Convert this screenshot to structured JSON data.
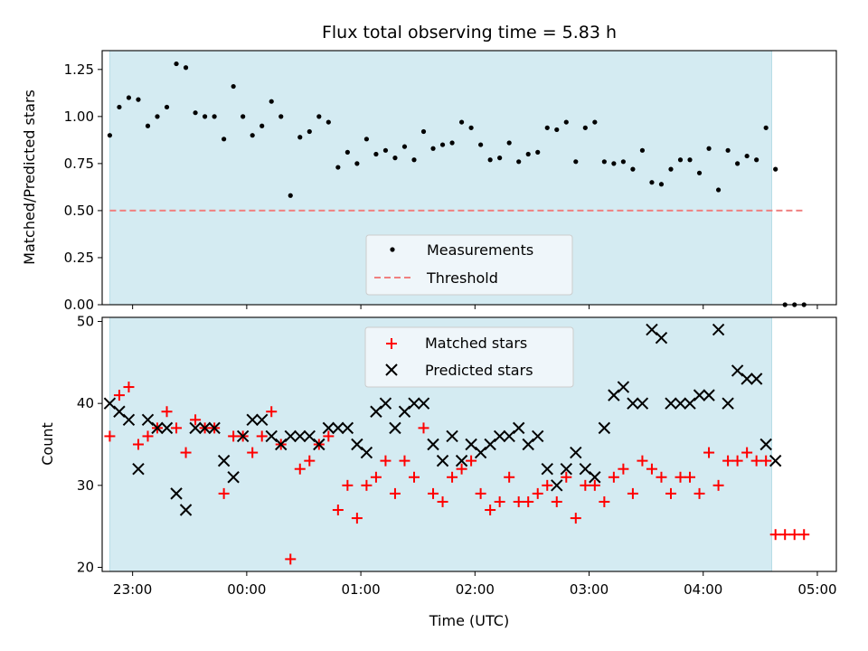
{
  "chart_data": [
    {
      "type": "scatter",
      "title": "Flux total observing time = 5.83 h",
      "xlabel": "",
      "ylabel": "Matched/Predicted stars",
      "xlim": [
        "22:44",
        "05:10"
      ],
      "ylim": [
        0,
        1.35
      ],
      "yticks": [
        "0.00",
        "0.25",
        "0.50",
        "0.75",
        "1.00",
        "1.25"
      ],
      "observing_window": [
        "22:48",
        "04:36"
      ],
      "colors": {
        "window": "#d4ebf2",
        "measurements": "#000000",
        "threshold": "#f08080"
      },
      "legend": {
        "placement": "lower-center",
        "entries": [
          "Measurements",
          "Threshold"
        ]
      },
      "threshold": {
        "name": "Threshold",
        "y": 0.5,
        "x": [
          "22:48",
          "04:54"
        ]
      },
      "series": [
        {
          "name": "Measurements",
          "x": [
            "22:48",
            "22:53",
            "22:58",
            "23:03",
            "23:08",
            "23:13",
            "23:18",
            "23:23",
            "23:28",
            "23:33",
            "23:38",
            "23:43",
            "23:48",
            "23:53",
            "23:58",
            "00:03",
            "00:08",
            "00:13",
            "00:18",
            "00:23",
            "00:28",
            "00:33",
            "00:38",
            "00:43",
            "00:48",
            "00:53",
            "00:58",
            "01:03",
            "01:08",
            "01:13",
            "01:18",
            "01:23",
            "01:28",
            "01:33",
            "01:38",
            "01:43",
            "01:48",
            "01:53",
            "01:58",
            "02:03",
            "02:08",
            "02:13",
            "02:18",
            "02:23",
            "02:28",
            "02:33",
            "02:38",
            "02:43",
            "02:48",
            "02:53",
            "02:58",
            "03:03",
            "03:08",
            "03:13",
            "03:18",
            "03:23",
            "03:28",
            "03:33",
            "03:38",
            "03:43",
            "03:48",
            "03:53",
            "03:58",
            "04:03",
            "04:08",
            "04:13",
            "04:18",
            "04:23",
            "04:28",
            "04:33",
            "04:38",
            "04:43",
            "04:48",
            "04:53"
          ],
          "y": [
            0.9,
            1.05,
            1.1,
            1.09,
            0.95,
            1.0,
            1.05,
            1.28,
            1.26,
            1.02,
            1.0,
            1.0,
            0.88,
            1.16,
            1.0,
            0.9,
            0.95,
            1.08,
            1.0,
            0.58,
            0.89,
            0.92,
            1.0,
            0.97,
            0.73,
            0.81,
            0.75,
            0.88,
            0.8,
            0.82,
            0.78,
            0.84,
            0.77,
            0.92,
            0.83,
            0.85,
            0.86,
            0.97,
            0.94,
            0.85,
            0.77,
            0.78,
            0.86,
            0.76,
            0.8,
            0.81,
            0.94,
            0.93,
            0.97,
            0.76,
            0.94,
            0.97,
            0.76,
            0.75,
            0.76,
            0.72,
            0.82,
            0.65,
            0.64,
            0.72,
            0.77,
            0.77,
            0.7,
            0.83,
            0.61,
            0.82,
            0.75,
            0.79,
            0.77,
            0.94,
            0.72,
            0.0,
            0.0,
            0.0
          ]
        }
      ]
    },
    {
      "type": "scatter",
      "title": "",
      "xlabel": "Time (UTC)",
      "ylabel": "Count",
      "xlim": [
        "22:44",
        "05:10"
      ],
      "ylim": [
        19.5,
        50.5
      ],
      "xticks": [
        "23:00",
        "00:00",
        "01:00",
        "02:00",
        "03:00",
        "04:00",
        "05:00"
      ],
      "yticks": [
        "20",
        "30",
        "40",
        "50"
      ],
      "observing_window": [
        "22:48",
        "04:36"
      ],
      "colors": {
        "window": "#d4ebf2",
        "matched": "#ff0000",
        "predicted": "#000000"
      },
      "legend": {
        "placement": "upper-center",
        "entries": [
          "Matched stars",
          "Predicted stars"
        ]
      },
      "series": [
        {
          "name": "Matched stars",
          "marker": "plus",
          "x": [
            "22:48",
            "22:53",
            "22:58",
            "23:03",
            "23:08",
            "23:13",
            "23:18",
            "23:23",
            "23:28",
            "23:33",
            "23:38",
            "23:43",
            "23:48",
            "23:53",
            "23:58",
            "00:03",
            "00:08",
            "00:13",
            "00:18",
            "00:23",
            "00:28",
            "00:33",
            "00:38",
            "00:43",
            "00:48",
            "00:53",
            "00:58",
            "01:03",
            "01:08",
            "01:13",
            "01:18",
            "01:23",
            "01:28",
            "01:33",
            "01:38",
            "01:43",
            "01:48",
            "01:53",
            "01:58",
            "02:03",
            "02:08",
            "02:13",
            "02:18",
            "02:23",
            "02:28",
            "02:33",
            "02:38",
            "02:43",
            "02:48",
            "02:53",
            "02:58",
            "03:03",
            "03:08",
            "03:13",
            "03:18",
            "03:23",
            "03:28",
            "03:33",
            "03:38",
            "03:43",
            "03:48",
            "03:53",
            "03:58",
            "04:03",
            "04:08",
            "04:13",
            "04:18",
            "04:23",
            "04:28",
            "04:33",
            "04:38",
            "04:43",
            "04:48",
            "04:53"
          ],
          "y": [
            36,
            41,
            42,
            35,
            36,
            37,
            39,
            37,
            34,
            38,
            37,
            37,
            29,
            36,
            36,
            34,
            36,
            39,
            35,
            21,
            32,
            33,
            35,
            36,
            27,
            30,
            26,
            30,
            31,
            33,
            29,
            33,
            31,
            37,
            29,
            28,
            31,
            32,
            33,
            29,
            27,
            28,
            31,
            28,
            28,
            29,
            30,
            28,
            31,
            26,
            30,
            30,
            28,
            31,
            32,
            29,
            33,
            32,
            31,
            29,
            31,
            31,
            29,
            34,
            30,
            33,
            33,
            34,
            33,
            33,
            24,
            24,
            24,
            24
          ]
        },
        {
          "name": "Predicted stars",
          "marker": "x",
          "x": [
            "22:48",
            "22:53",
            "22:58",
            "23:03",
            "23:08",
            "23:13",
            "23:18",
            "23:23",
            "23:28",
            "23:33",
            "23:38",
            "23:43",
            "23:48",
            "23:53",
            "23:58",
            "00:03",
            "00:08",
            "00:13",
            "00:18",
            "00:23",
            "00:28",
            "00:33",
            "00:38",
            "00:43",
            "00:48",
            "00:53",
            "00:58",
            "01:03",
            "01:08",
            "01:13",
            "01:18",
            "01:23",
            "01:28",
            "01:33",
            "01:38",
            "01:43",
            "01:48",
            "01:53",
            "01:58",
            "02:03",
            "02:08",
            "02:13",
            "02:18",
            "02:23",
            "02:28",
            "02:33",
            "02:38",
            "02:43",
            "02:48",
            "02:53",
            "02:58",
            "03:03",
            "03:08",
            "03:13",
            "03:18",
            "03:23",
            "03:28",
            "03:33",
            "03:38",
            "03:43",
            "03:48",
            "03:53",
            "03:58",
            "04:03",
            "04:08",
            "04:13",
            "04:18",
            "04:23",
            "04:28",
            "04:33",
            "04:38"
          ],
          "y": [
            40,
            39,
            38,
            32,
            38,
            37,
            37,
            29,
            27,
            37,
            37,
            37,
            33,
            31,
            36,
            38,
            38,
            36,
            35,
            36,
            36,
            36,
            35,
            37,
            37,
            37,
            35,
            34,
            39,
            40,
            37,
            39,
            40,
            40,
            35,
            33,
            36,
            33,
            35,
            34,
            35,
            36,
            36,
            37,
            35,
            36,
            32,
            30,
            32,
            34,
            32,
            31,
            37,
            41,
            42,
            40,
            40,
            49,
            48,
            40,
            40,
            40,
            41,
            41,
            49,
            40,
            44,
            43,
            43,
            35,
            33
          ]
        }
      ]
    }
  ]
}
